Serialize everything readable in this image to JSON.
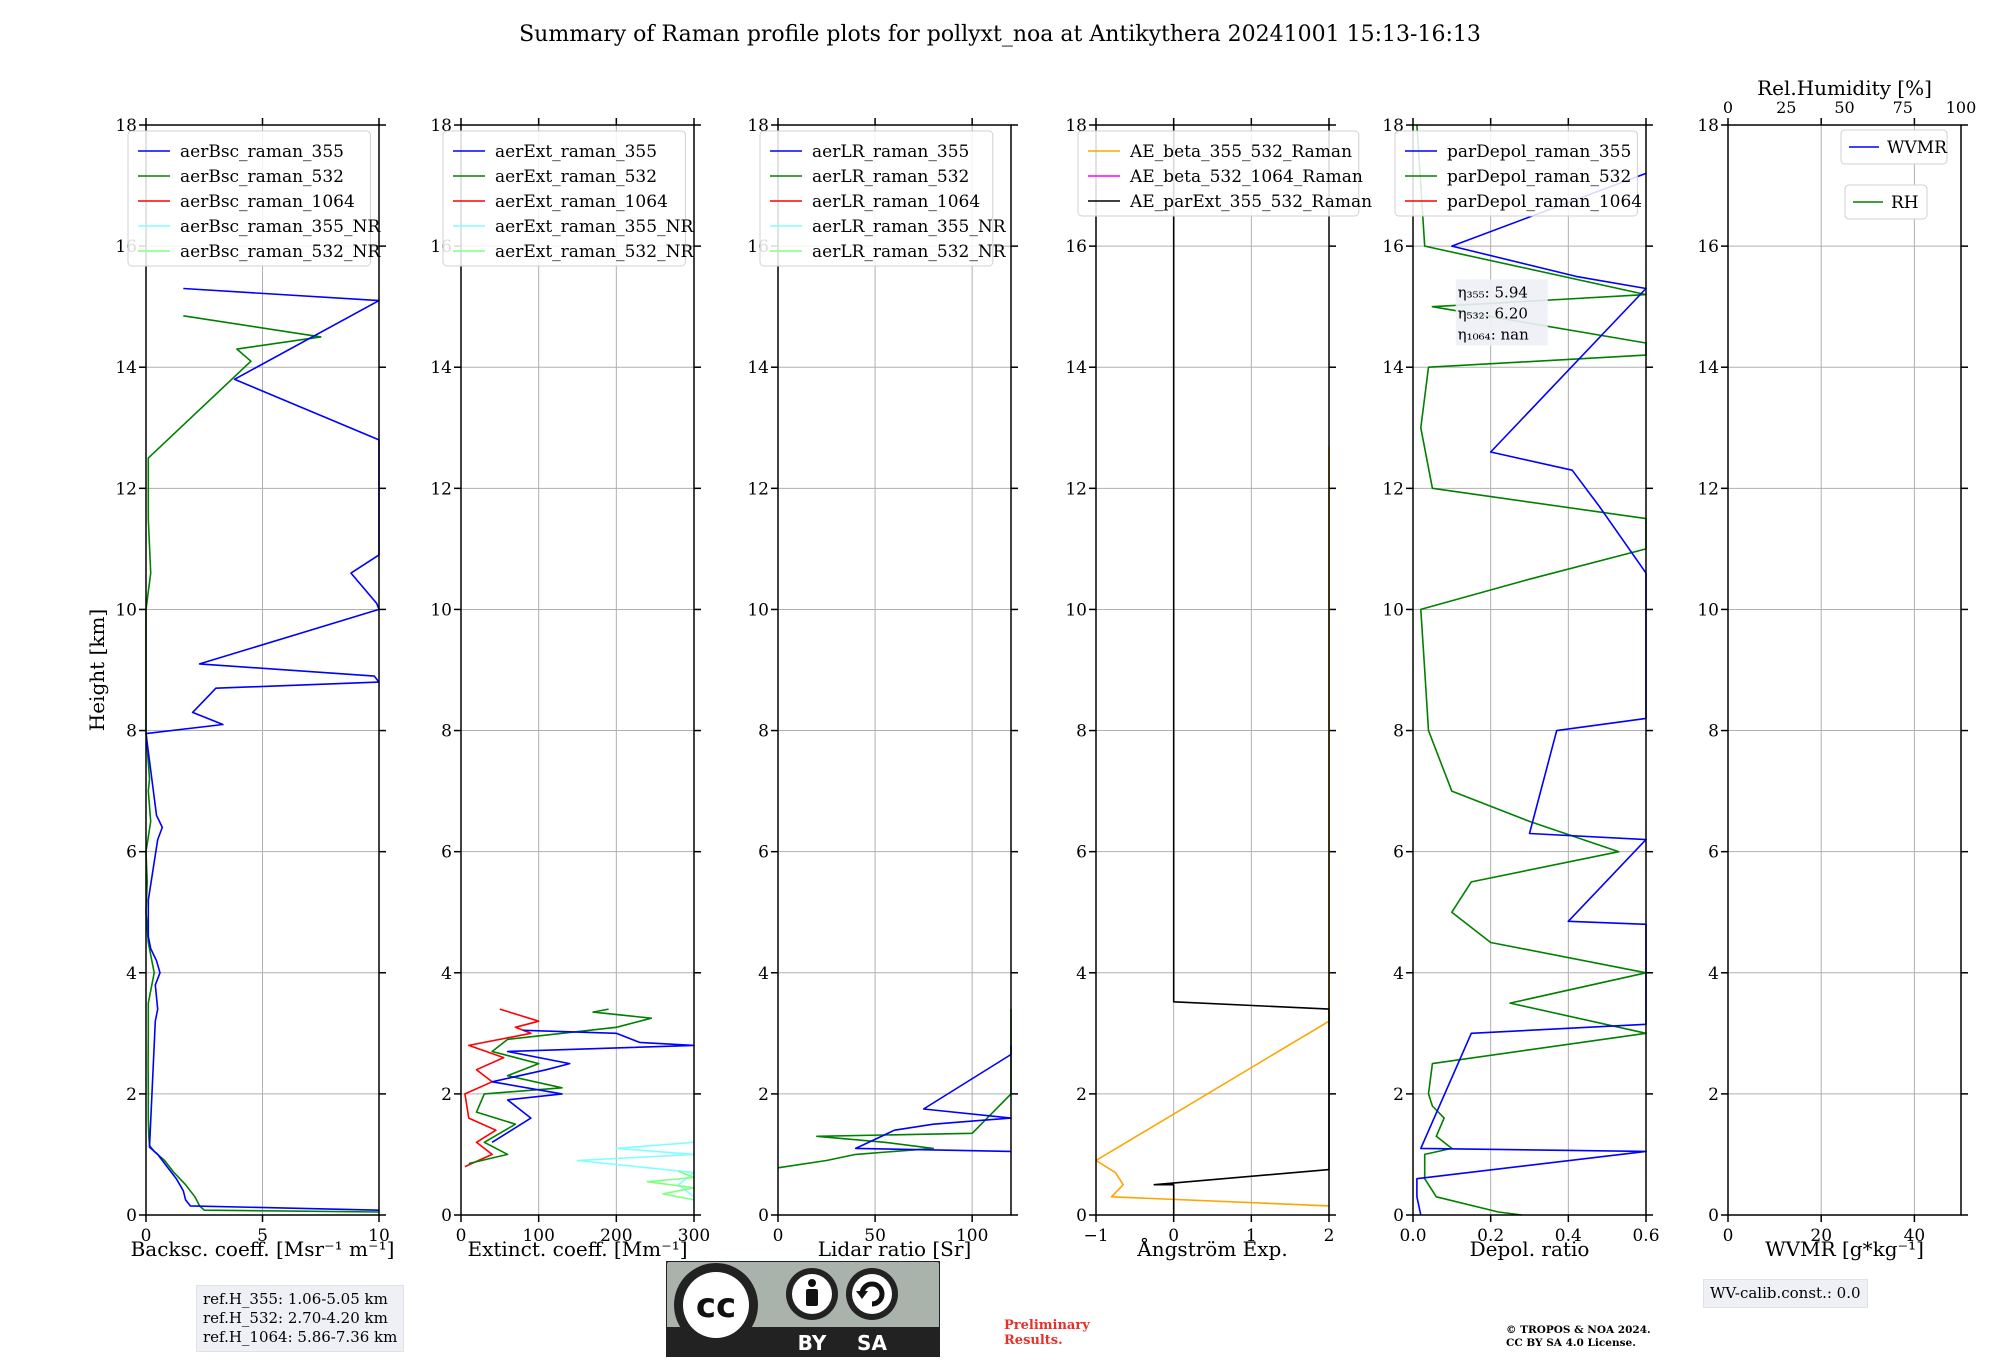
{
  "page_title": "Summary of Raman profile plots for pollyxt_noa at Antikythera 20241001 15:13-16:13",
  "ref_heights": [
    "ref.H_355: 1.06-5.05 km",
    "ref.H_532: 2.70-4.20 km",
    "ref.H_1064: 5.86-7.36 km"
  ],
  "wv_calib": "WV-calib.const.: 0.0",
  "preliminary": [
    "Preliminary",
    "Results."
  ],
  "copyright": [
    "© TROPOS & NOA 2024.",
    "CC BY SA 4.0 License."
  ],
  "license_badge": {
    "cc": "cc",
    "by": "BY",
    "sa": "SA"
  },
  "colors": {
    "blue": "#0000ff",
    "green": "#008000",
    "red": "#ff0000",
    "cyan": "#80ffff",
    "lightgreen": "#80ff80",
    "orange": "#ffa500",
    "magenta": "#ff00ff",
    "black": "#000000"
  },
  "chart_data": [
    {
      "type": "line",
      "xlabel": "Backsc. coeff. [Msr⁻¹ m⁻¹]",
      "ylabel": "Height [km]",
      "xlim": [
        0,
        10
      ],
      "ylim": [
        0,
        18
      ],
      "xticks": [
        0,
        5,
        10
      ],
      "xtick_labels": [
        "0",
        "5",
        "10"
      ],
      "yticks": [
        0,
        2,
        4,
        6,
        8,
        10,
        12,
        14,
        16,
        18
      ],
      "legend": [
        "aerBsc_raman_355",
        "aerBsc_raman_532",
        "aerBsc_raman_1064",
        "aerBsc_raman_355_NR",
        "aerBsc_raman_532_NR"
      ],
      "legend_colors": [
        "blue",
        "green",
        "red",
        "cyan",
        "lightgreen"
      ],
      "series": [
        {
          "name": "aerBsc_raman_532",
          "color": "green",
          "y": [
            0.05,
            0.08,
            0.15,
            0.3,
            0.5,
            0.7,
            0.9,
            1.05,
            1.15,
            1.3,
            1.6,
            2.0,
            2.5,
            3.0,
            3.5,
            4.0,
            4.5,
            5.0,
            5.5,
            6.0,
            6.5,
            7.0,
            7.2,
            8.0,
            10.0,
            10.6,
            11.5,
            12.5,
            14.1,
            14.3,
            14.5,
            14.85
          ],
          "x": [
            10.0,
            2.5,
            2.3,
            2.1,
            1.7,
            1.2,
            0.8,
            0.35,
            0.15,
            0.12,
            0.1,
            0.1,
            0.09,
            0.1,
            0.1,
            0.35,
            0.1,
            0.0,
            0.05,
            0.0,
            0.2,
            0.1,
            0.15,
            0.0,
            0.0,
            0.2,
            0.1,
            0.1,
            4.5,
            3.9,
            7.5,
            1.6
          ]
        },
        {
          "name": "aerBsc_raman_355",
          "color": "blue",
          "y": [
            0.08,
            0.15,
            0.25,
            0.4,
            0.6,
            0.8,
            1.0,
            1.12,
            3.2,
            3.4,
            3.6,
            3.8,
            4.0,
            4.2,
            4.4,
            4.6,
            5.2,
            6.2,
            6.4,
            6.6,
            7.95,
            8.1,
            8.3,
            8.5,
            8.7,
            8.8,
            8.9,
            9.1,
            10.0,
            10.1,
            10.6,
            10.9,
            11.2,
            11.6,
            11.9,
            12.2,
            12.5,
            12.8,
            13.8,
            15.1,
            15.3
          ],
          "x": [
            10.0,
            1.9,
            1.7,
            1.6,
            1.3,
            0.9,
            0.5,
            0.15,
            0.4,
            0.5,
            0.45,
            0.4,
            0.6,
            0.45,
            0.2,
            0.1,
            0.1,
            0.5,
            0.7,
            0.45,
            0.0,
            3.3,
            2.0,
            2.5,
            3.0,
            10.0,
            9.8,
            2.3,
            10.0,
            9.9,
            8.8,
            10.0,
            10.0,
            10.0,
            10.0,
            10.0,
            10.0,
            10.0,
            3.8,
            10.0,
            1.6
          ]
        }
      ]
    },
    {
      "type": "line",
      "xlabel": "Extinct. coeff. [Mm⁻¹]",
      "xlim": [
        0,
        300
      ],
      "ylim": [
        0,
        18
      ],
      "xticks": [
        0,
        100,
        200,
        300
      ],
      "xtick_labels": [
        "0",
        "100",
        "200",
        "300"
      ],
      "yticks": [
        0,
        2,
        4,
        6,
        8,
        10,
        12,
        14,
        16,
        18
      ],
      "legend": [
        "aerExt_raman_355",
        "aerExt_raman_532",
        "aerExt_raman_1064",
        "aerExt_raman_355_NR",
        "aerExt_raman_532_NR"
      ],
      "legend_colors": [
        "blue",
        "green",
        "red",
        "cyan",
        "lightgreen"
      ],
      "series": [
        {
          "name": "aerExt_raman_355_NR",
          "color": "cyan",
          "y": [
            0.3,
            0.5,
            0.7,
            0.9,
            1.0,
            1.1,
            1.2
          ],
          "x": [
            300,
            280,
            300,
            150,
            300,
            200,
            300
          ]
        },
        {
          "name": "aerExt_raman_532_NR",
          "color": "lightgreen",
          "y": [
            0.25,
            0.35,
            0.45,
            0.55,
            0.62,
            0.72
          ],
          "x": [
            300,
            260,
            300,
            240,
            300,
            280
          ]
        },
        {
          "name": "aerExt_raman_1064",
          "color": "red",
          "y": [
            0.8,
            1.0,
            1.2,
            1.4,
            1.6,
            2.0,
            2.2,
            2.4,
            2.6,
            2.8,
            3.0,
            3.1,
            3.2,
            3.4
          ],
          "x": [
            5,
            40,
            20,
            45,
            10,
            5,
            40,
            20,
            55,
            10,
            90,
            70,
            100,
            50
          ]
        },
        {
          "name": "aerExt_raman_532",
          "color": "green",
          "y": [
            0.85,
            1.0,
            1.2,
            1.5,
            1.7,
            2.0,
            2.1,
            2.3,
            2.5,
            2.7,
            2.9,
            3.1,
            3.25,
            3.35,
            3.4
          ],
          "x": [
            10,
            60,
            30,
            70,
            20,
            30,
            130,
            60,
            100,
            40,
            60,
            200,
            245,
            170,
            190
          ]
        },
        {
          "name": "aerExt_raman_355",
          "color": "blue",
          "y": [
            1.2,
            1.6,
            1.9,
            2.0,
            2.2,
            2.4,
            2.5,
            2.7,
            2.8,
            2.85,
            3.0,
            3.05
          ],
          "x": [
            40,
            90,
            60,
            130,
            40,
            110,
            140,
            60,
            300,
            230,
            200,
            80
          ]
        }
      ]
    },
    {
      "type": "line",
      "xlabel": "Lidar ratio [Sr]",
      "xlim": [
        0,
        120
      ],
      "ylim": [
        0,
        18
      ],
      "xticks": [
        0,
        50,
        100
      ],
      "xtick_labels": [
        "0",
        "50",
        "100"
      ],
      "yticks": [
        0,
        2,
        4,
        6,
        8,
        10,
        12,
        14,
        16,
        18
      ],
      "legend": [
        "aerLR_raman_355",
        "aerLR_raman_532",
        "aerLR_raman_1064",
        "aerLR_raman_355_NR",
        "aerLR_raman_532_NR"
      ],
      "legend_colors": [
        "blue",
        "green",
        "red",
        "cyan",
        "lightgreen"
      ],
      "series": [
        {
          "name": "aerLR_raman_532",
          "color": "green",
          "y": [
            0.78,
            0.9,
            1.0,
            1.1,
            1.2,
            1.3,
            1.35,
            2.0,
            2.6,
            2.7,
            2.8,
            3.1,
            3.4
          ],
          "x": [
            0,
            25,
            40,
            80,
            55,
            20,
            100,
            120,
            120,
            120,
            120,
            120,
            120
          ]
        },
        {
          "name": "aerLR_raman_355",
          "color": "blue",
          "y": [
            1.05,
            1.1,
            1.4,
            1.5,
            1.55,
            1.6,
            1.75,
            2.65,
            2.8
          ],
          "x": [
            120,
            40,
            60,
            80,
            100,
            120,
            75,
            120,
            120
          ]
        }
      ]
    },
    {
      "type": "line",
      "xlabel": "Ångström Exp.",
      "xlim": [
        -1,
        2
      ],
      "ylim": [
        0,
        18
      ],
      "xticks": [
        -1,
        0,
        1,
        2
      ],
      "xtick_labels": [
        "−1",
        "0",
        "1",
        "2"
      ],
      "yticks": [
        0,
        2,
        4,
        6,
        8,
        10,
        12,
        14,
        16,
        18
      ],
      "legend": [
        "AE_beta_355_532_Raman",
        "AE_beta_532_1064_Raman",
        "AE_parExt_355_532_Raman"
      ],
      "legend_colors": [
        "orange",
        "magenta",
        "black"
      ],
      "series": [
        {
          "name": "AE_beta_355_532_Raman",
          "color": "orange",
          "y": [
            0.15,
            0.3,
            0.5,
            0.7,
            0.9,
            3.2,
            4.7,
            5.2,
            6.2,
            6.65,
            7.95,
            9.15,
            9.85,
            10.0,
            10.5,
            11.4,
            11.55,
            12.0,
            12.3,
            12.7
          ],
          "x": [
            2.0,
            -0.8,
            -0.65,
            -0.75,
            -1.0,
            2.0,
            2.0,
            2.0,
            2.0,
            2.0,
            2.0,
            2.0,
            2.0,
            2.0,
            2.0,
            2.0,
            2.0,
            2.0,
            2.0,
            2.0
          ]
        },
        {
          "name": "AE_parExt_355_532_Raman",
          "color": "black",
          "y": [
            0.0,
            0.5,
            0.5,
            0.75,
            1.15,
            2.0,
            2.3,
            2.55,
            3.4,
            3.52,
            18.0
          ],
          "x": [
            0.0,
            0.0,
            -0.25,
            2.0,
            2.0,
            2.0,
            2.0,
            2.0,
            2.0,
            0.0,
            0.0
          ]
        }
      ]
    },
    {
      "type": "line",
      "xlabel": "Depol. ratio",
      "xlim": [
        0,
        0.6
      ],
      "ylim": [
        0,
        18
      ],
      "xticks": [
        0,
        0.2,
        0.4,
        0.6
      ],
      "xtick_labels": [
        "0.0",
        "0.2",
        "0.4",
        "0.6"
      ],
      "yticks": [
        0,
        2,
        4,
        6,
        8,
        10,
        12,
        14,
        16,
        18
      ],
      "legend": [
        "parDepol_raman_355",
        "parDepol_raman_532",
        "parDepol_raman_1064"
      ],
      "legend_colors": [
        "blue",
        "green",
        "red"
      ],
      "annotations": [
        "η₃₅₅: 5.94",
        "η₅₃₂: 6.20",
        "η₁₀₆₄: nan"
      ],
      "series": [
        {
          "name": "parDepol_raman_532",
          "color": "green",
          "y": [
            0.0,
            0.05,
            0.3,
            0.6,
            1.0,
            1.1,
            1.3,
            1.6,
            1.8,
            2.0,
            2.5,
            3.0,
            3.5,
            4.0,
            4.5,
            5.0,
            5.5,
            6.0,
            6.5,
            7.0,
            8.0,
            9.0,
            10.0,
            10.5,
            11.0,
            11.5,
            12.0,
            13.0,
            14.0,
            14.2,
            14.4,
            15.0,
            15.2,
            16.0,
            17.0,
            18.0
          ],
          "x": [
            0.28,
            0.22,
            0.06,
            0.03,
            0.03,
            0.1,
            0.06,
            0.08,
            0.05,
            0.04,
            0.05,
            0.6,
            0.25,
            0.6,
            0.2,
            0.1,
            0.15,
            0.53,
            0.3,
            0.1,
            0.04,
            0.03,
            0.02,
            0.3,
            0.6,
            0.6,
            0.05,
            0.02,
            0.04,
            0.6,
            0.6,
            0.05,
            0.6,
            0.03,
            0.02,
            0.01
          ]
        },
        {
          "name": "parDepol_raman_355",
          "color": "blue",
          "y": [
            0.0,
            0.3,
            0.6,
            1.05,
            1.1,
            3.0,
            3.15,
            4.8,
            4.85,
            6.2,
            6.3,
            8.0,
            8.2,
            9.9,
            10.0,
            10.6,
            11.7,
            12.3,
            12.6,
            15.3,
            15.5,
            16.0,
            17.2
          ],
          "x": [
            0.02,
            0.01,
            0.01,
            0.6,
            0.02,
            0.15,
            0.6,
            0.6,
            0.4,
            0.6,
            0.3,
            0.37,
            0.6,
            0.6,
            0.6,
            0.6,
            0.48,
            0.41,
            0.2,
            0.6,
            0.42,
            0.1,
            0.6
          ]
        }
      ]
    },
    {
      "type": "line",
      "xlabel": "WVMR [g*kg⁻¹]",
      "top_xlabel": "Rel.Humidity [%]",
      "xlim": [
        0,
        50
      ],
      "ylim": [
        0,
        18
      ],
      "xticks": [
        0,
        20,
        40
      ],
      "xtick_labels": [
        "0",
        "20",
        "40"
      ],
      "top_xlim": [
        0,
        100
      ],
      "top_xticks": [
        0,
        25,
        50,
        75,
        100
      ],
      "top_xtick_labels": [
        "0",
        "25",
        "50",
        "75",
        "100"
      ],
      "yticks": [
        0,
        2,
        4,
        6,
        8,
        10,
        12,
        14,
        16,
        18
      ],
      "legend": [
        "WVMR",
        "RH"
      ],
      "legend_colors": [
        "blue",
        "green"
      ],
      "series": []
    }
  ]
}
